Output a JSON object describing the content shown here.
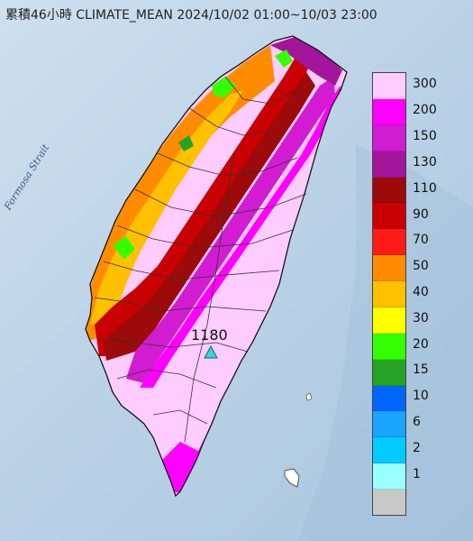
{
  "map": {
    "title": "累積46小時 CLIMATE_MEAN 2024/10/02 01:00~10/03 23:00",
    "sea_label": "Formosa Strait",
    "station": {
      "value": "1180",
      "marker_color": "#33d6d6"
    }
  },
  "legend": {
    "unit_levels": [
      {
        "label": "300",
        "color": "#ffccff"
      },
      {
        "label": "200",
        "color": "#ff00ff"
      },
      {
        "label": "150",
        "color": "#d11cd1"
      },
      {
        "label": "130",
        "color": "#a3159b"
      },
      {
        "label": "110",
        "color": "#9c0a0a"
      },
      {
        "label": "90",
        "color": "#c90000"
      },
      {
        "label": "70",
        "color": "#ff1a1a"
      },
      {
        "label": "50",
        "color": "#ff8c00"
      },
      {
        "label": "40",
        "color": "#ffc000"
      },
      {
        "label": "30",
        "color": "#ffff00"
      },
      {
        "label": "20",
        "color": "#33ff00"
      },
      {
        "label": "15",
        "color": "#26a326"
      },
      {
        "label": "10",
        "color": "#0066ff"
      },
      {
        "label": "6",
        "color": "#1aa3ff"
      },
      {
        "label": "2",
        "color": "#00ccff"
      },
      {
        "label": "1",
        "color": "#99ffff"
      },
      {
        "label": "",
        "color": "#c8c8c8"
      }
    ]
  }
}
